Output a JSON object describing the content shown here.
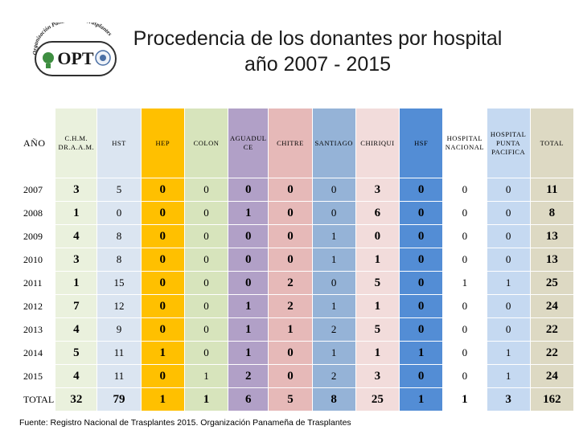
{
  "header": {
    "title_line1": "Procedencia de los donantes por hospital",
    "title_line2": "año 2007 - 2015",
    "logo_text": "OPT",
    "logo_arc_text": "Organización Panameña de Trasplantes"
  },
  "table": {
    "columns": [
      "AÑO",
      "C.H.M. DR.A.A.M.",
      "HST",
      "HEP",
      "COLON",
      "AGUADUL CE",
      "CHITRE",
      "SANTIAGO",
      "CHIRIQUI",
      "HSF",
      "HOSPITAL NACIONAL",
      "HOSPITAL PUNTA PACIFICA",
      "TOTAL"
    ],
    "rows": [
      {
        "year": "2007",
        "values": [
          "3",
          "5",
          "0",
          "0",
          "0",
          "0",
          "0",
          "3",
          "0",
          "0",
          "0",
          "11"
        ]
      },
      {
        "year": "2008",
        "values": [
          "1",
          "0",
          "0",
          "0",
          "1",
          "0",
          "0",
          "6",
          "0",
          "0",
          "0",
          "8"
        ]
      },
      {
        "year": "2009",
        "values": [
          "4",
          "8",
          "0",
          "0",
          "0",
          "0",
          "1",
          "0",
          "0",
          "0",
          "0",
          "13"
        ]
      },
      {
        "year": "2010",
        "values": [
          "3",
          "8",
          "0",
          "0",
          "0",
          "0",
          "1",
          "1",
          "0",
          "0",
          "0",
          "13"
        ]
      },
      {
        "year": "2011",
        "values": [
          "1",
          "15",
          "0",
          "0",
          "0",
          "2",
          "0",
          "5",
          "0",
          "1",
          "1",
          "25"
        ]
      },
      {
        "year": "2012",
        "values": [
          "7",
          "12",
          "0",
          "0",
          "1",
          "2",
          "1",
          "1",
          "0",
          "0",
          "0",
          "24"
        ]
      },
      {
        "year": "2013",
        "values": [
          "4",
          "9",
          "0",
          "0",
          "1",
          "1",
          "2",
          "5",
          "0",
          "0",
          "0",
          "22"
        ]
      },
      {
        "year": "2014",
        "values": [
          "5",
          "11",
          "1",
          "0",
          "1",
          "0",
          "1",
          "1",
          "1",
          "0",
          "1",
          "22"
        ]
      },
      {
        "year": "2015",
        "values": [
          "4",
          "11",
          "0",
          "1",
          "2",
          "0",
          "2",
          "3",
          "0",
          "0",
          "1",
          "24"
        ]
      },
      {
        "year": "TOTAL",
        "values": [
          "32",
          "79",
          "1",
          "1",
          "6",
          "5",
          "8",
          "25",
          "1",
          "1",
          "3",
          "162"
        ]
      }
    ]
  },
  "footer": {
    "source": "Fuente: Registro Nacional de Trasplantes 2015.   Organización Panameña de Trasplantes"
  },
  "colors": {
    "col_year": "#ffffff",
    "col_chm": "#eaf1dd",
    "col_hst": "#dbe5f1",
    "col_hep": "#ffc000",
    "col_colon": "#d7e4bc",
    "col_aguadulce": "#b1a0c7",
    "col_chitre": "#e6b9b8",
    "col_santiago": "#95b3d7",
    "col_chiriqui": "#f2dcdb",
    "col_hsf": "#538dd5",
    "col_hnacional": "#ffffff",
    "col_hpp": "#c5d9f1",
    "col_total": "#ddd9c3"
  }
}
